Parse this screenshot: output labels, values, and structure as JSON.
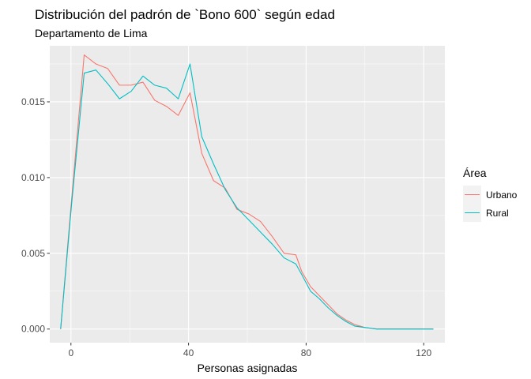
{
  "chart_data": {
    "type": "line",
    "title": "Distribución del padrón de `Bono 600` según edad",
    "subtitle": "Departamento de Lima",
    "xlabel": "Personas asignadas",
    "ylabel": "",
    "xlim": [
      -7.2,
      127.2
    ],
    "ylim": [
      -0.0009,
      0.0187
    ],
    "x_ticks": [
      0,
      40,
      80,
      120
    ],
    "x_tick_labels": [
      "0",
      "40",
      "80",
      "120"
    ],
    "y_ticks": [
      0.0,
      0.005,
      0.01,
      0.015
    ],
    "y_tick_labels": [
      "0.000",
      "0.005",
      "0.010",
      "0.015"
    ],
    "grid": true,
    "legend": {
      "title": "Área",
      "position": "right"
    },
    "series": [
      {
        "name": "Urbano",
        "color": "#F8766D",
        "x": [
          -3.5,
          0.2,
          4.5,
          8.5,
          12.5,
          16.5,
          20.5,
          24.5,
          28.5,
          32.5,
          36.5,
          40.5,
          44.5,
          48.5,
          52.5,
          56.5,
          60.5,
          64.5,
          68.5,
          72.5,
          76.5,
          78.5,
          81.5,
          84.5,
          87.5,
          90.5,
          93.5,
          96.5,
          100,
          104,
          108,
          112,
          116,
          120,
          123.3
        ],
        "values": [
          0.0,
          0.0085,
          0.0181,
          0.0175,
          0.0172,
          0.0161,
          0.0161,
          0.0163,
          0.0151,
          0.0147,
          0.0141,
          0.0156,
          0.0116,
          0.0098,
          0.0093,
          0.0079,
          0.0076,
          0.0071,
          0.0061,
          0.005,
          0.0049,
          0.0038,
          0.0028,
          0.0022,
          0.0016,
          0.001,
          0.0006,
          0.0003,
          0.0001,
          0.0,
          0.0,
          0.0,
          0.0,
          0.0,
          0.0
        ]
      },
      {
        "name": "Rural",
        "color": "#00BFC4",
        "x": [
          -3.5,
          0.2,
          4.5,
          8.5,
          12.5,
          16.5,
          20.5,
          24.5,
          28.5,
          32.5,
          36.5,
          40.5,
          44.5,
          48.5,
          52.5,
          56.5,
          60.5,
          64.5,
          68.5,
          72.5,
          76.5,
          78.5,
          81.5,
          84.5,
          87.5,
          90.5,
          93.5,
          96.5,
          100,
          104,
          108,
          112,
          116,
          120,
          123.3
        ],
        "values": [
          0.0,
          0.0082,
          0.0169,
          0.0171,
          0.0162,
          0.0152,
          0.0157,
          0.0167,
          0.0161,
          0.0159,
          0.0152,
          0.0175,
          0.0127,
          0.0109,
          0.0092,
          0.008,
          0.0072,
          0.0064,
          0.0056,
          0.0047,
          0.0043,
          0.0036,
          0.0025,
          0.002,
          0.0014,
          0.0009,
          0.0005,
          0.0002,
          0.0001,
          0.0,
          0.0,
          0.0,
          0.0,
          0.0,
          0.0
        ]
      }
    ]
  }
}
